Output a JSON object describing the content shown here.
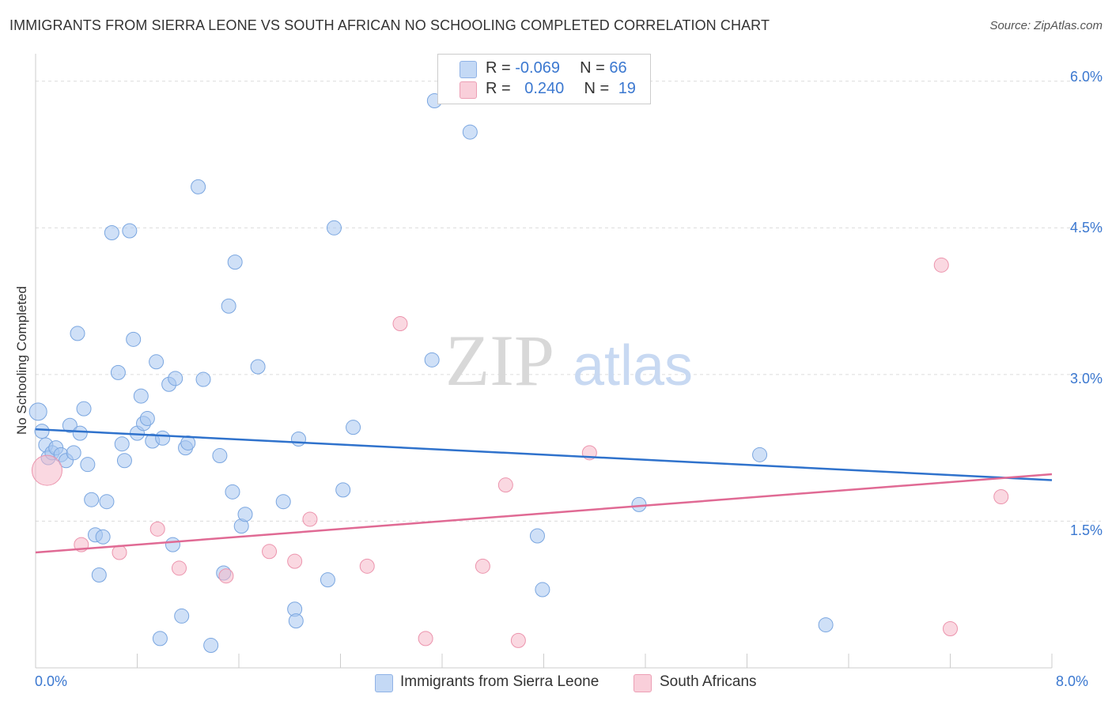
{
  "header": {
    "title": "IMMIGRANTS FROM SIERRA LEONE VS SOUTH AFRICAN NO SCHOOLING COMPLETED CORRELATION CHART",
    "source": "Source: ZipAtlas.com"
  },
  "legend": {
    "rows": [
      {
        "r_label": "R = ",
        "r_value": "-0.069",
        "n_label": "N = ",
        "n_value": "66",
        "color": "#a8c6f0"
      },
      {
        "r_label": "R = ",
        "r_value": "0.240",
        "n_label": "N = ",
        "n_value": "19",
        "color": "#f6b8c8"
      }
    ]
  },
  "watermark": {
    "zip": "ZIP",
    "atlas": "atlas"
  },
  "chart_data": {
    "type": "scatter",
    "title": "IMMIGRANTS FROM SIERRA LEONE VS SOUTH AFRICAN NO SCHOOLING COMPLETED CORRELATION CHART",
    "xlabel": "",
    "ylabel": "No Schooling Completed",
    "xlim": [
      0,
      8.0
    ],
    "ylim": [
      0,
      6.2
    ],
    "x_tick_labels": [
      "0.0%",
      "8.0%"
    ],
    "x_tick_values": [
      0,
      8.0
    ],
    "y_tick_labels": [
      "1.5%",
      "3.0%",
      "4.5%",
      "6.0%"
    ],
    "y_tick_values": [
      1.5,
      3.0,
      4.5,
      6.0
    ],
    "grid": true,
    "legend_position": "bottom",
    "series": [
      {
        "name": "Immigrants from Sierra Leone",
        "color": "#a8c6f0",
        "stroke": "#7aa6e0",
        "trend": {
          "x": [
            0,
            8.0
          ],
          "y": [
            2.44,
            1.92
          ],
          "color": "#2f72cc"
        },
        "points": [
          [
            0.02,
            2.62
          ],
          [
            0.05,
            2.42
          ],
          [
            0.08,
            2.28
          ],
          [
            0.1,
            2.15
          ],
          [
            0.13,
            2.2
          ],
          [
            0.16,
            2.25
          ],
          [
            0.2,
            2.18
          ],
          [
            0.24,
            2.12
          ],
          [
            0.27,
            2.48
          ],
          [
            0.3,
            2.2
          ],
          [
            0.33,
            3.42
          ],
          [
            0.35,
            2.4
          ],
          [
            0.38,
            2.65
          ],
          [
            0.41,
            2.08
          ],
          [
            0.44,
            1.72
          ],
          [
            0.47,
            1.36
          ],
          [
            0.5,
            0.95
          ],
          [
            0.53,
            1.34
          ],
          [
            0.56,
            1.7
          ],
          [
            0.6,
            4.45
          ],
          [
            0.65,
            3.02
          ],
          [
            0.68,
            2.29
          ],
          [
            0.7,
            2.12
          ],
          [
            0.74,
            4.47
          ],
          [
            0.77,
            3.36
          ],
          [
            0.8,
            2.4
          ],
          [
            0.83,
            2.78
          ],
          [
            0.85,
            2.5
          ],
          [
            0.88,
            2.55
          ],
          [
            0.92,
            2.32
          ],
          [
            0.95,
            3.13
          ],
          [
            0.98,
            0.3
          ],
          [
            1.0,
            2.35
          ],
          [
            1.05,
            2.9
          ],
          [
            1.08,
            1.26
          ],
          [
            1.1,
            2.96
          ],
          [
            1.15,
            0.53
          ],
          [
            1.18,
            2.25
          ],
          [
            1.2,
            2.3
          ],
          [
            1.28,
            4.92
          ],
          [
            1.32,
            2.95
          ],
          [
            1.38,
            0.23
          ],
          [
            1.45,
            2.17
          ],
          [
            1.48,
            0.97
          ],
          [
            1.52,
            3.7
          ],
          [
            1.55,
            1.8
          ],
          [
            1.57,
            4.15
          ],
          [
            1.62,
            1.45
          ],
          [
            1.65,
            1.57
          ],
          [
            1.75,
            3.08
          ],
          [
            1.95,
            1.7
          ],
          [
            2.04,
            0.6
          ],
          [
            2.05,
            0.48
          ],
          [
            2.07,
            2.34
          ],
          [
            2.3,
            0.9
          ],
          [
            2.35,
            4.5
          ],
          [
            2.42,
            1.82
          ],
          [
            2.5,
            2.46
          ],
          [
            3.12,
            3.15
          ],
          [
            3.14,
            5.8
          ],
          [
            3.42,
            5.48
          ],
          [
            3.95,
            1.35
          ],
          [
            3.99,
            0.8
          ],
          [
            4.75,
            1.67
          ],
          [
            5.7,
            2.18
          ],
          [
            6.22,
            0.44
          ]
        ]
      },
      {
        "name": "South Africans",
        "color": "#f6b8c8",
        "stroke": "#ec94ad",
        "trend": {
          "x": [
            0,
            8.0
          ],
          "y": [
            1.18,
            1.98
          ],
          "color": "#e06a94"
        },
        "points": [
          [
            0.09,
            2.02
          ],
          [
            0.36,
            1.26
          ],
          [
            0.66,
            1.18
          ],
          [
            0.96,
            1.42
          ],
          [
            1.13,
            1.02
          ],
          [
            1.5,
            0.94
          ],
          [
            1.84,
            1.19
          ],
          [
            2.04,
            1.09
          ],
          [
            2.16,
            1.52
          ],
          [
            2.61,
            1.04
          ],
          [
            2.87,
            3.52
          ],
          [
            3.07,
            0.3
          ],
          [
            3.52,
            1.04
          ],
          [
            3.7,
            1.87
          ],
          [
            3.8,
            0.28
          ],
          [
            4.36,
            2.2
          ],
          [
            7.13,
            4.12
          ],
          [
            7.2,
            0.4
          ],
          [
            7.6,
            1.75
          ]
        ]
      }
    ]
  }
}
